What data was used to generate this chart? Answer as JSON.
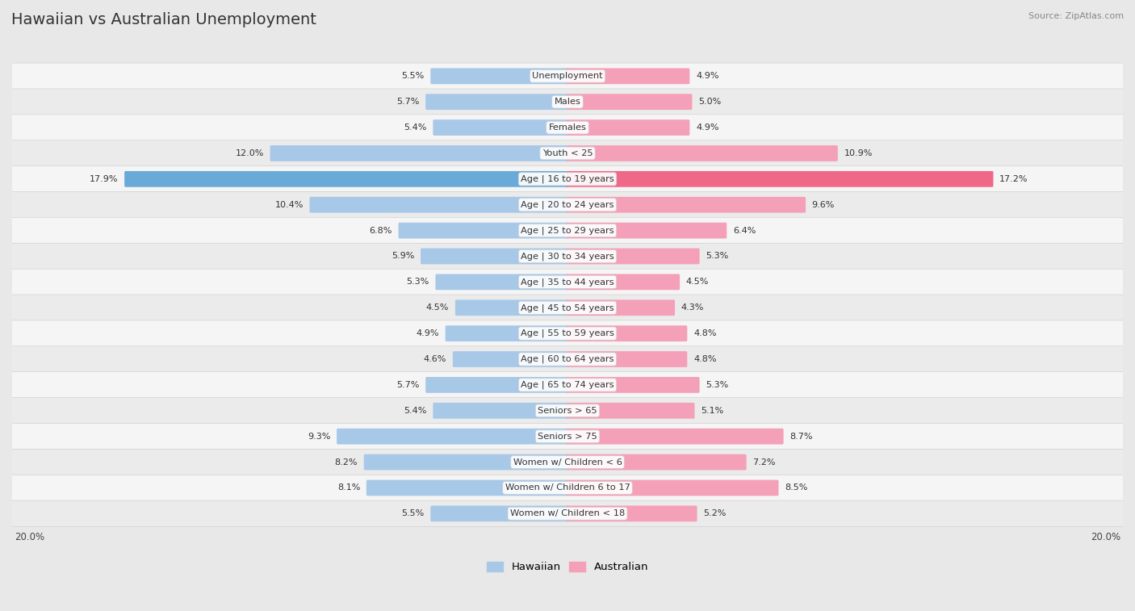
{
  "title": "Hawaiian vs Australian Unemployment",
  "source": "Source: ZipAtlas.com",
  "categories": [
    "Unemployment",
    "Males",
    "Females",
    "Youth < 25",
    "Age | 16 to 19 years",
    "Age | 20 to 24 years",
    "Age | 25 to 29 years",
    "Age | 30 to 34 years",
    "Age | 35 to 44 years",
    "Age | 45 to 54 years",
    "Age | 55 to 59 years",
    "Age | 60 to 64 years",
    "Age | 65 to 74 years",
    "Seniors > 65",
    "Seniors > 75",
    "Women w/ Children < 6",
    "Women w/ Children 6 to 17",
    "Women w/ Children < 18"
  ],
  "hawaiian": [
    5.5,
    5.7,
    5.4,
    12.0,
    17.9,
    10.4,
    6.8,
    5.9,
    5.3,
    4.5,
    4.9,
    4.6,
    5.7,
    5.4,
    9.3,
    8.2,
    8.1,
    5.5
  ],
  "australian": [
    4.9,
    5.0,
    4.9,
    10.9,
    17.2,
    9.6,
    6.4,
    5.3,
    4.5,
    4.3,
    4.8,
    4.8,
    5.3,
    5.1,
    8.7,
    7.2,
    8.5,
    5.2
  ],
  "hawaiian_color": "#a8c8e8",
  "australian_color": "#f4a0b8",
  "highlight_hawaiian_color": "#6aaad8",
  "highlight_australian_color": "#f06888",
  "bg_color": "#e8e8e8",
  "row_bg_light": "#f5f5f5",
  "row_bg_dark": "#ebebeb",
  "max_val": 20.0
}
